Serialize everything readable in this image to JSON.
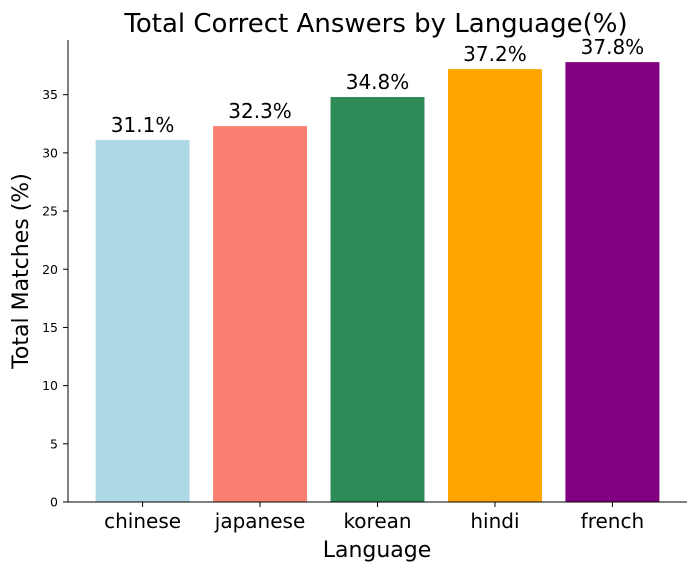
{
  "chart_data": {
    "type": "bar",
    "title": "Total Correct Answers by Language(%)",
    "xlabel": "Language",
    "ylabel": "Total Matches (%)",
    "categories": [
      "chinese",
      "japanese",
      "korean",
      "hindi",
      "french"
    ],
    "values": [
      31.1,
      32.3,
      34.8,
      37.2,
      37.8
    ],
    "data_labels": [
      "31.1%",
      "32.3%",
      "34.8%",
      "37.2%",
      "37.8%"
    ],
    "colors": [
      "#add8e6",
      "#fa8072",
      "#2e8b57",
      "#ffa500",
      "#800080"
    ],
    "yticks": [
      0,
      5,
      10,
      15,
      20,
      25,
      30,
      35
    ],
    "ylim": [
      0,
      39.7
    ],
    "grid": false,
    "spines": [
      "left",
      "bottom"
    ]
  }
}
